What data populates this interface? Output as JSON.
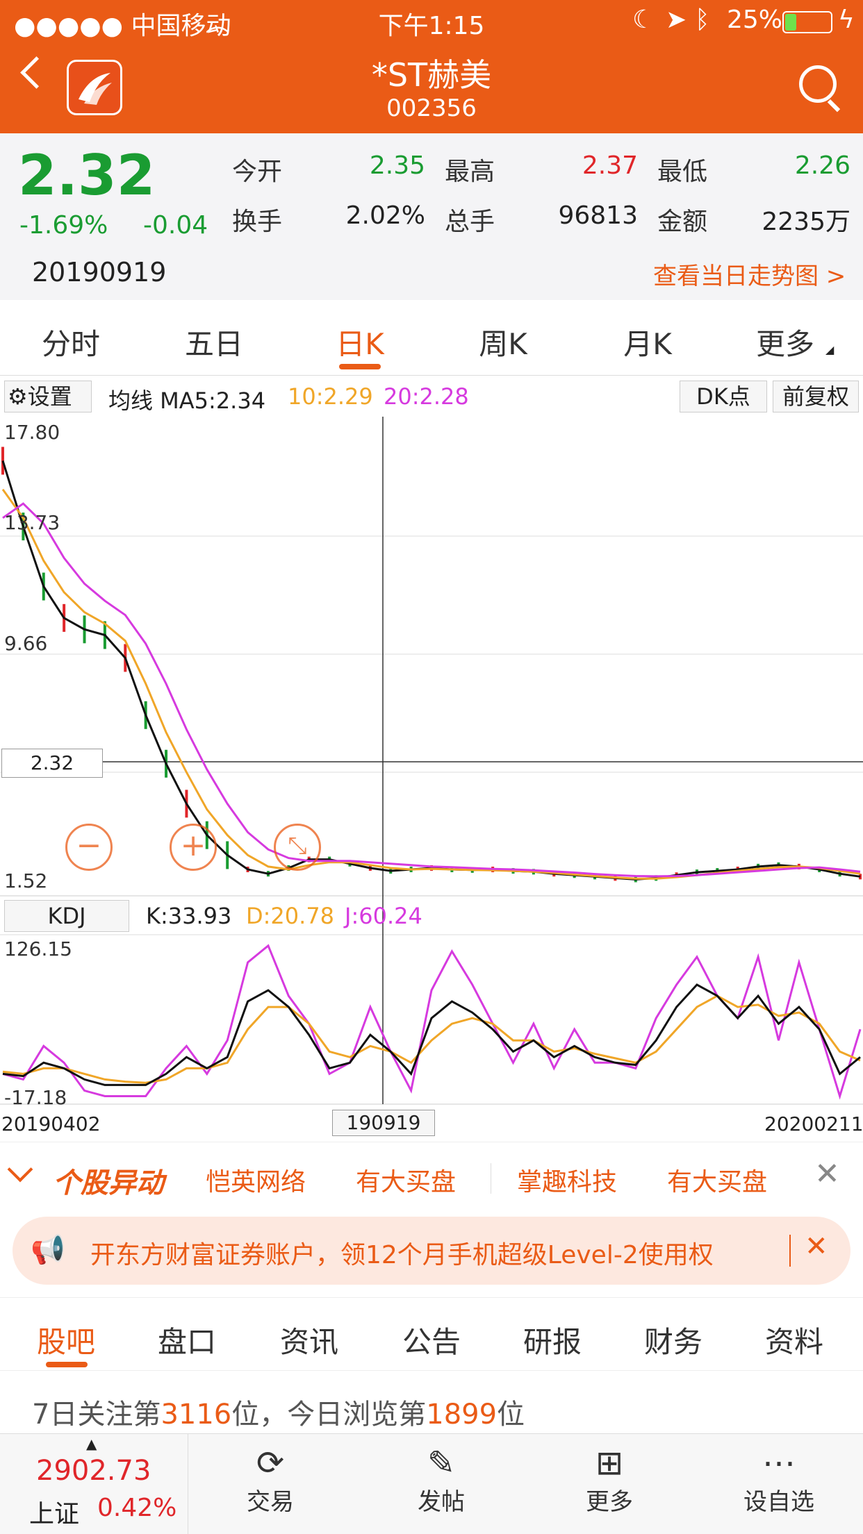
{
  "status": {
    "carrier": "●●●●● 中国移动",
    "time": "下午1:15",
    "battery": "25%"
  },
  "header": {
    "title": "*ST赫美",
    "code": "002356"
  },
  "quote": {
    "price": "2.32",
    "change_pct": "-1.69%",
    "change": "-0.04",
    "date": "20190919",
    "fields": [
      {
        "label": "今开",
        "value": "2.35",
        "color": "green"
      },
      {
        "label": "最高",
        "value": "2.37",
        "color": "red"
      },
      {
        "label": "最低",
        "value": "2.26",
        "color": "green"
      },
      {
        "label": "换手",
        "value": "2.02%",
        "color": "dark"
      },
      {
        "label": "总手",
        "value": "96813",
        "color": "dark"
      },
      {
        "label": "金额",
        "value": "2235万",
        "color": "dark"
      }
    ],
    "trend_link": "查看当日走势图 >"
  },
  "period_tabs": [
    "分时",
    "五日",
    "日K",
    "周K",
    "月K",
    "更多"
  ],
  "period_active": 2,
  "chart_toolbar": {
    "settings": "设置",
    "ma_label": "均线 MA5:2.34",
    "ma10": "10:2.29",
    "ma20": "20:2.28",
    "dk_button": "DK点",
    "adjust_button": "前复权"
  },
  "price_axis": [
    "17.80",
    "13.73",
    "9.66",
    "1.52"
  ],
  "crosshair_price": "2.32",
  "kdj": {
    "label": "KDJ",
    "k": "K:33.93",
    "d": "D:20.78",
    "j": "J:60.24",
    "top": "126.15",
    "bottom": "-17.18"
  },
  "date_axis": {
    "start": "20190402",
    "cursor": "190919",
    "end": "20200211"
  },
  "colors": {
    "brand": "#ea5b16",
    "up": "#e0262a",
    "down": "#1a9c32",
    "ma10": "#f0a628",
    "ma20": "#d63adf"
  },
  "movers": {
    "title": "个股异动",
    "items": [
      "恺英网络",
      "有大买盘",
      "掌趣科技",
      "有大买盘"
    ]
  },
  "promo": "开东方财富证券账户，领12个月手机超级Level-2使用权",
  "content_tabs": [
    "股吧",
    "盘口",
    "资讯",
    "公告",
    "研报",
    "财务",
    "资料"
  ],
  "content_active": 0,
  "rank": {
    "prefix": "7日关注第",
    "follow": "3116",
    "mid": "位，今日浏览第",
    "view": "1899",
    "suffix": "位"
  },
  "bottom_nav": {
    "index_value": "2902.73",
    "index_name": "上证",
    "index_pct": "0.42%",
    "items": [
      "交易",
      "发帖",
      "更多",
      "设自选"
    ]
  },
  "chart_data": {
    "type": "line",
    "series": [
      {
        "name": "MA5",
        "values": [
          16.5,
          14.2,
          12.1,
          11.0,
          10.6,
          10.4,
          9.6,
          7.6,
          5.9,
          4.5,
          3.4,
          2.7,
          2.2,
          2.05,
          2.25,
          2.55,
          2.55,
          2.4,
          2.25,
          2.15,
          2.2,
          2.25,
          2.2,
          2.18,
          2.2,
          2.15,
          2.12,
          2.05,
          2.0,
          1.95,
          1.9,
          1.85,
          1.9,
          2.0,
          2.1,
          2.15,
          2.2,
          2.3,
          2.35,
          2.3,
          2.2,
          2.05,
          1.95
        ]
      },
      {
        "name": "MA10",
        "values": [
          15.5,
          14.5,
          13.0,
          11.9,
          11.2,
          10.8,
          10.2,
          8.7,
          7.0,
          5.6,
          4.3,
          3.4,
          2.7,
          2.3,
          2.2,
          2.35,
          2.45,
          2.45,
          2.35,
          2.25,
          2.2,
          2.22,
          2.2,
          2.18,
          2.17,
          2.15,
          2.12,
          2.08,
          2.02,
          1.97,
          1.92,
          1.88,
          1.88,
          1.93,
          2.0,
          2.08,
          2.15,
          2.22,
          2.28,
          2.3,
          2.25,
          2.15,
          2.05
        ]
      },
      {
        "name": "MA20",
        "values": [
          14.5,
          15.0,
          14.3,
          13.1,
          12.2,
          11.6,
          11.1,
          10.1,
          8.7,
          7.1,
          5.7,
          4.5,
          3.5,
          2.9,
          2.6,
          2.5,
          2.5,
          2.5,
          2.45,
          2.4,
          2.35,
          2.3,
          2.28,
          2.25,
          2.22,
          2.2,
          2.17,
          2.13,
          2.09,
          2.04,
          2.0,
          1.97,
          1.96,
          1.97,
          2.0,
          2.05,
          2.1,
          2.15,
          2.2,
          2.25,
          2.27,
          2.2,
          2.12
        ]
      }
    ],
    "ylim": [
      1.52,
      17.8
    ],
    "kdj_range": [
      -17.18,
      126.15
    ],
    "kdj_j": [
      10,
      5,
      35,
      20,
      -5,
      -10,
      -10,
      -10,
      15,
      35,
      10,
      40,
      110,
      125,
      80,
      55,
      10,
      20,
      70,
      30,
      -5,
      85,
      120,
      90,
      55,
      20,
      55,
      15,
      50,
      20,
      20,
      15,
      60,
      90,
      115,
      80,
      60,
      115,
      40,
      110,
      50,
      -10,
      50
    ],
    "kdj_k": [
      10,
      8,
      20,
      15,
      5,
      0,
      0,
      0,
      10,
      25,
      15,
      25,
      75,
      85,
      70,
      45,
      15,
      20,
      45,
      30,
      10,
      60,
      75,
      65,
      50,
      30,
      40,
      25,
      35,
      25,
      20,
      18,
      40,
      70,
      90,
      80,
      60,
      80,
      55,
      70,
      50,
      10,
      25
    ],
    "kdj_d": [
      12,
      10,
      15,
      15,
      10,
      5,
      3,
      2,
      5,
      15,
      15,
      20,
      50,
      70,
      70,
      55,
      30,
      25,
      35,
      30,
      20,
      40,
      55,
      60,
      55,
      40,
      40,
      30,
      33,
      28,
      24,
      20,
      30,
      50,
      70,
      80,
      70,
      72,
      62,
      65,
      55,
      30,
      22
    ]
  }
}
